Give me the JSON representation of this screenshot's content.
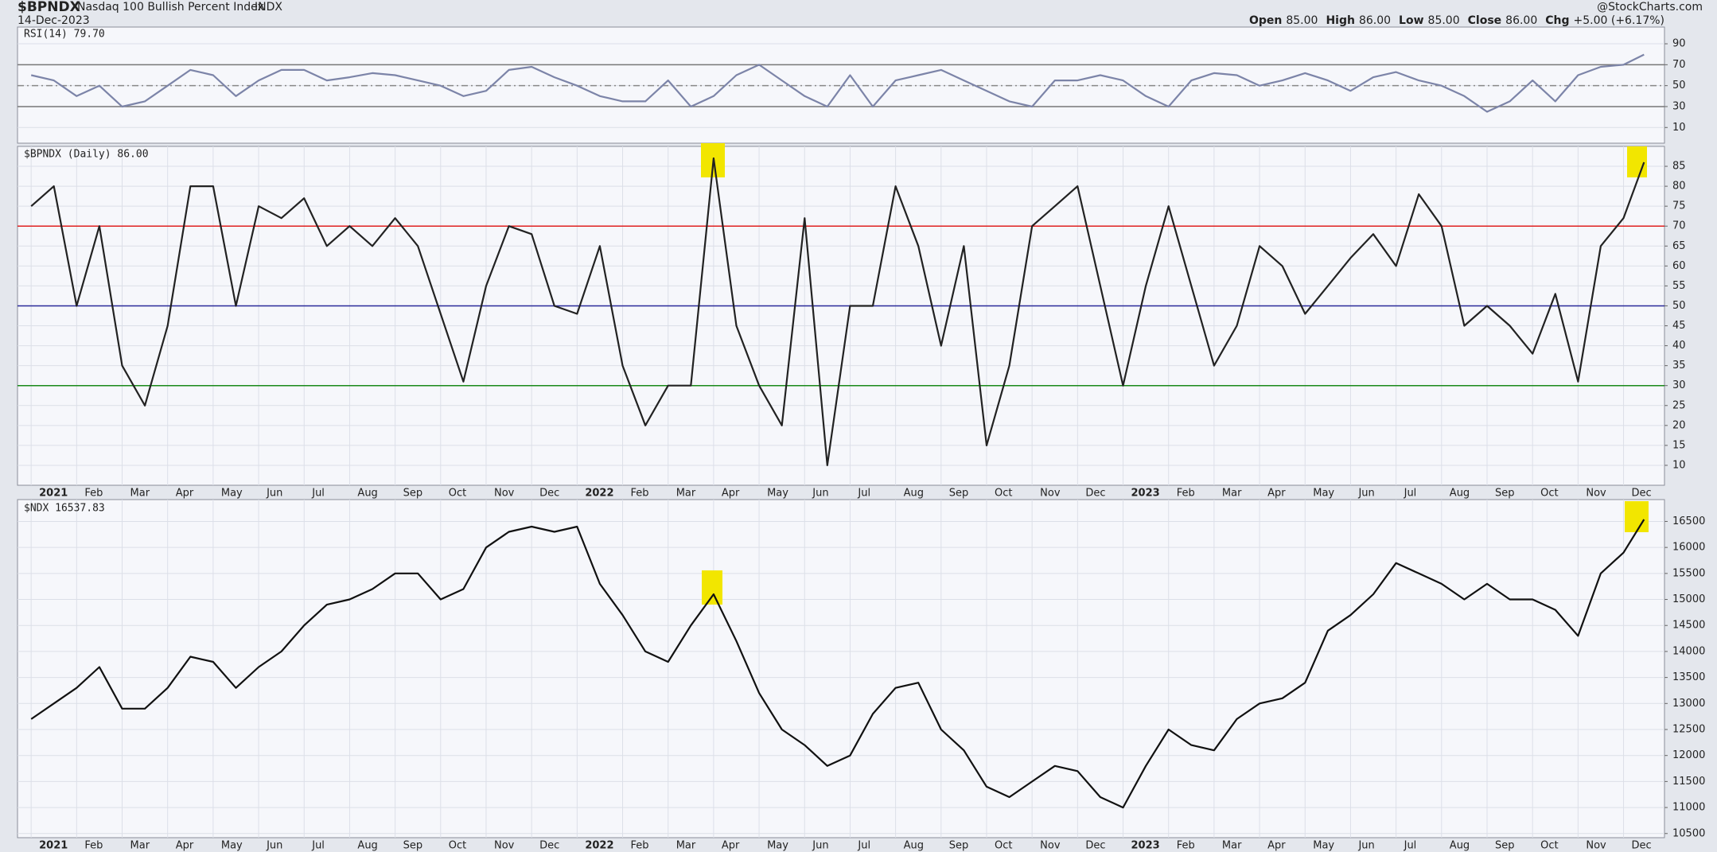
{
  "header": {
    "symbol": "$BPNDX",
    "name": "Nasdaq 100 Bullish Percent Index",
    "exchange": "INDX",
    "date": "14-Dec-2023",
    "credit": "@StockCharts.com",
    "quote": [
      {
        "label": "Open",
        "value": "85.00"
      },
      {
        "label": "High",
        "value": "86.00"
      },
      {
        "label": "Low",
        "value": "85.00"
      },
      {
        "label": "Close",
        "value": "86.00"
      },
      {
        "label": "Chg",
        "value": "+5.00 (+6.17%)"
      }
    ]
  },
  "chart_data": [
    {
      "type": "line",
      "title": "RSI(14) 79.70",
      "color": "#7c84a8",
      "x": [
        0,
        0.5,
        1,
        1.5,
        2,
        2.5,
        3,
        3.5,
        4,
        4.5,
        5,
        5.5,
        6,
        6.5,
        7,
        7.5,
        8,
        8.5,
        9,
        9.5,
        10,
        10.5,
        11,
        11.5,
        12,
        12.5,
        13,
        13.5,
        14,
        14.5,
        15,
        15.5,
        16,
        16.5,
        17,
        17.5,
        18,
        18.5,
        19,
        19.5,
        20,
        20.5,
        21,
        21.5,
        22,
        22.5,
        23,
        23.5,
        24,
        24.5,
        25,
        25.5,
        26,
        26.5,
        27,
        27.5,
        28,
        28.5,
        29,
        29.5,
        30,
        30.5,
        31,
        31.5,
        32,
        32.5,
        33,
        33.5,
        34,
        34.5,
        35,
        35.45
      ],
      "values": [
        60,
        55,
        40,
        50,
        30,
        35,
        50,
        65,
        60,
        40,
        55,
        65,
        65,
        55,
        58,
        62,
        60,
        55,
        50,
        40,
        45,
        65,
        68,
        58,
        50,
        40,
        35,
        35,
        55,
        30,
        40,
        60,
        70,
        55,
        40,
        30,
        60,
        30,
        55,
        60,
        65,
        55,
        45,
        35,
        30,
        55,
        55,
        60,
        55,
        40,
        30,
        55,
        62,
        60,
        50,
        55,
        62,
        55,
        45,
        58,
        63,
        55,
        50,
        40,
        25,
        35,
        55,
        35,
        60,
        68,
        70,
        79.7
      ],
      "xlim": [
        -0.3,
        35.9
      ],
      "ylim": [
        -5,
        106
      ],
      "yticks": [
        10,
        30,
        50,
        70,
        90
      ],
      "hlines": [
        {
          "value": 70,
          "color": "#777",
          "style": "solid"
        },
        {
          "value": 50,
          "color": "#888",
          "style": "dashed"
        },
        {
          "value": 30,
          "color": "#777",
          "style": "solid"
        }
      ]
    },
    {
      "type": "line",
      "title": "$BPNDX (Daily) 86.00",
      "color": "#222",
      "x": [
        0,
        0.5,
        1,
        1.5,
        2,
        2.5,
        3,
        3.5,
        4,
        4.5,
        5,
        5.5,
        6,
        6.5,
        7,
        7.5,
        8,
        8.5,
        9,
        9.5,
        10,
        10.5,
        11,
        11.5,
        12,
        12.5,
        13,
        13.5,
        14,
        14.5,
        15,
        15.5,
        16,
        16.5,
        17,
        17.5,
        18,
        18.5,
        19,
        19.5,
        20,
        20.5,
        21,
        21.5,
        22,
        22.5,
        23,
        23.5,
        24,
        24.5,
        25,
        25.5,
        26,
        26.5,
        27,
        27.5,
        28,
        28.5,
        29,
        29.5,
        30,
        30.5,
        31,
        31.5,
        32,
        32.5,
        33,
        33.5,
        34,
        34.5,
        35,
        35.45
      ],
      "values": [
        75,
        80,
        50,
        70,
        35,
        25,
        45,
        80,
        80,
        50,
        75,
        72,
        77,
        65,
        70,
        65,
        72,
        65,
        48,
        31,
        55,
        70,
        68,
        50,
        48,
        65,
        35,
        20,
        30,
        30,
        87,
        45,
        30,
        20,
        72,
        10,
        50,
        50,
        80,
        65,
        40,
        65,
        15,
        35,
        70,
        75,
        80,
        55,
        30,
        55,
        75,
        55,
        35,
        45,
        65,
        60,
        48,
        55,
        62,
        68,
        60,
        78,
        70,
        45,
        50,
        45,
        38,
        53,
        31,
        65,
        72,
        86
      ],
      "xlim": [
        -0.3,
        35.9
      ],
      "ylim": [
        5,
        90
      ],
      "yticks": [
        10,
        15,
        20,
        25,
        30,
        35,
        40,
        45,
        50,
        55,
        60,
        65,
        70,
        75,
        80,
        85
      ],
      "hlines": [
        {
          "value": 70,
          "color": "#e02020",
          "style": "solid"
        },
        {
          "value": 50,
          "color": "#2a2a9a",
          "style": "solid"
        },
        {
          "value": 30,
          "color": "#1a8a1a",
          "style": "solid"
        }
      ],
      "xticks": [
        {
          "value": 0,
          "label": "2021"
        },
        {
          "value": 1,
          "label": "Feb"
        },
        {
          "value": 2,
          "label": "Mar"
        },
        {
          "value": 3,
          "label": "Apr"
        },
        {
          "value": 4,
          "label": "May"
        },
        {
          "value": 5,
          "label": "Jun"
        },
        {
          "value": 6,
          "label": "Jul"
        },
        {
          "value": 7,
          "label": "Aug"
        },
        {
          "value": 8,
          "label": "Sep"
        },
        {
          "value": 9,
          "label": "Oct"
        },
        {
          "value": 10,
          "label": "Nov"
        },
        {
          "value": 11,
          "label": "Dec"
        },
        {
          "value": 12,
          "label": "2022"
        },
        {
          "value": 13,
          "label": "Feb"
        },
        {
          "value": 14,
          "label": "Mar"
        },
        {
          "value": 15,
          "label": "Apr"
        },
        {
          "value": 16,
          "label": "May"
        },
        {
          "value": 17,
          "label": "Jun"
        },
        {
          "value": 18,
          "label": "Jul"
        },
        {
          "value": 19,
          "label": "Aug"
        },
        {
          "value": 20,
          "label": "Sep"
        },
        {
          "value": 21,
          "label": "Oct"
        },
        {
          "value": 22,
          "label": "Nov"
        },
        {
          "value": 23,
          "label": "Dec"
        },
        {
          "value": 24,
          "label": "2023"
        },
        {
          "value": 25,
          "label": "Feb"
        },
        {
          "value": 26,
          "label": "Mar"
        },
        {
          "value": 27,
          "label": "Apr"
        },
        {
          "value": 28,
          "label": "May"
        },
        {
          "value": 29,
          "label": "Jun"
        },
        {
          "value": 30,
          "label": "Jul"
        },
        {
          "value": 31,
          "label": "Aug"
        },
        {
          "value": 32,
          "label": "Sep"
        },
        {
          "value": 33,
          "label": "Oct"
        },
        {
          "value": 34,
          "label": "Nov"
        },
        {
          "value": 35,
          "label": "Dec"
        }
      ]
    },
    {
      "type": "line",
      "title": "$NDX 16537.83",
      "color": "#111",
      "x": [
        0,
        0.5,
        1,
        1.5,
        2,
        2.5,
        3,
        3.5,
        4,
        4.5,
        5,
        5.5,
        6,
        6.5,
        7,
        7.5,
        8,
        8.5,
        9,
        9.5,
        10,
        10.5,
        11,
        11.5,
        12,
        12.5,
        13,
        13.5,
        14,
        14.5,
        15,
        15.5,
        16,
        16.5,
        17,
        17.5,
        18,
        18.5,
        19,
        19.5,
        20,
        20.5,
        21,
        21.5,
        22,
        22.5,
        23,
        23.5,
        24,
        24.5,
        25,
        25.5,
        26,
        26.5,
        27,
        27.5,
        28,
        28.5,
        29,
        29.5,
        30,
        30.5,
        31,
        31.5,
        32,
        32.5,
        33,
        33.5,
        34,
        34.5,
        35,
        35.45
      ],
      "values": [
        12700,
        13000,
        13300,
        13700,
        12900,
        12900,
        13300,
        13900,
        13800,
        13300,
        13700,
        14000,
        14500,
        14900,
        15000,
        15200,
        15500,
        15500,
        15000,
        15200,
        16000,
        16300,
        16400,
        16300,
        16400,
        15300,
        14700,
        14000,
        13800,
        14500,
        15100,
        14200,
        13200,
        12500,
        12200,
        11800,
        12000,
        12800,
        13300,
        13400,
        12500,
        12100,
        11400,
        11200,
        11500,
        11800,
        11700,
        11200,
        11000,
        11800,
        12500,
        12200,
        12100,
        12700,
        13000,
        13100,
        13400,
        14400,
        14700,
        15100,
        15700,
        15500,
        15300,
        15000,
        15300,
        15000,
        15000,
        14800,
        14300,
        15500,
        15900,
        16537.83
      ],
      "xlim": [
        -0.3,
        35.9
      ],
      "ylim": [
        10420,
        16920
      ],
      "yticks": [
        10500,
        11000,
        11500,
        12000,
        12500,
        13000,
        13500,
        14000,
        14500,
        15000,
        15500,
        16000,
        16500
      ],
      "xticks": [
        {
          "value": 0,
          "label": "2021"
        },
        {
          "value": 1,
          "label": "Feb"
        },
        {
          "value": 2,
          "label": "Mar"
        },
        {
          "value": 3,
          "label": "Apr"
        },
        {
          "value": 4,
          "label": "May"
        },
        {
          "value": 5,
          "label": "Jun"
        },
        {
          "value": 6,
          "label": "Jul"
        },
        {
          "value": 7,
          "label": "Aug"
        },
        {
          "value": 8,
          "label": "Sep"
        },
        {
          "value": 9,
          "label": "Oct"
        },
        {
          "value": 10,
          "label": "Nov"
        },
        {
          "value": 11,
          "label": "Dec"
        },
        {
          "value": 12,
          "label": "2022"
        },
        {
          "value": 13,
          "label": "Feb"
        },
        {
          "value": 14,
          "label": "Mar"
        },
        {
          "value": 15,
          "label": "Apr"
        },
        {
          "value": 16,
          "label": "May"
        },
        {
          "value": 17,
          "label": "Jun"
        },
        {
          "value": 18,
          "label": "Jul"
        },
        {
          "value": 19,
          "label": "Aug"
        },
        {
          "value": 20,
          "label": "Sep"
        },
        {
          "value": 21,
          "label": "Oct"
        },
        {
          "value": 22,
          "label": "Nov"
        },
        {
          "value": 23,
          "label": "Dec"
        },
        {
          "value": 24,
          "label": "2023"
        },
        {
          "value": 25,
          "label": "Feb"
        },
        {
          "value": 26,
          "label": "Mar"
        },
        {
          "value": 27,
          "label": "Apr"
        },
        {
          "value": 28,
          "label": "May"
        },
        {
          "value": 29,
          "label": "Jun"
        },
        {
          "value": 30,
          "label": "Jul"
        },
        {
          "value": 31,
          "label": "Aug"
        },
        {
          "value": 32,
          "label": "Sep"
        },
        {
          "value": 33,
          "label": "Oct"
        },
        {
          "value": 34,
          "label": "Nov"
        },
        {
          "value": 35,
          "label": "Dec"
        }
      ]
    }
  ]
}
